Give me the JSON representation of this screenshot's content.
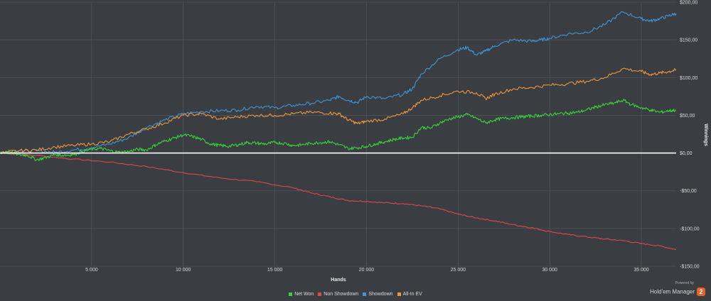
{
  "chart_data": {
    "type": "line",
    "xlabel": "Hands",
    "ylabel": "Winnings",
    "xlim": [
      0,
      36900
    ],
    "ylim": [
      -150,
      200
    ],
    "x_ticks": [
      5000,
      10000,
      15000,
      20000,
      25000,
      30000,
      35000
    ],
    "x_tick_labels": [
      "5 000",
      "10 000",
      "15 000",
      "20 000",
      "25 000",
      "30 000",
      "35 000"
    ],
    "y_ticks": [
      200,
      150,
      100,
      50,
      0,
      -50,
      -100,
      -150
    ],
    "y_tick_labels": [
      "$200,00",
      "$150,00",
      "$100,00",
      "$50,00",
      "$0,00",
      "-$50,00",
      "-$100,00",
      "-$150,00"
    ],
    "grid": true,
    "legend_position": "bottom-center",
    "zero_line_color": "#ffffff",
    "series": [
      {
        "name": "Net Won",
        "color": "#35d33a",
        "points": [
          [
            0,
            0
          ],
          [
            500,
            2
          ],
          [
            1000,
            -2
          ],
          [
            1500,
            -3
          ],
          [
            2000,
            -9
          ],
          [
            2500,
            -6
          ],
          [
            3000,
            -2
          ],
          [
            3500,
            -3
          ],
          [
            4000,
            -2
          ],
          [
            4500,
            2
          ],
          [
            5000,
            5
          ],
          [
            5500,
            6
          ],
          [
            6000,
            3
          ],
          [
            6500,
            1
          ],
          [
            7000,
            2
          ],
          [
            7500,
            5
          ],
          [
            8000,
            4
          ],
          [
            8500,
            11
          ],
          [
            9000,
            16
          ],
          [
            9500,
            20
          ],
          [
            10000,
            24
          ],
          [
            10500,
            22
          ],
          [
            11000,
            18
          ],
          [
            11500,
            12
          ],
          [
            12000,
            10
          ],
          [
            12500,
            9
          ],
          [
            13000,
            11
          ],
          [
            13500,
            14
          ],
          [
            14000,
            13
          ],
          [
            14500,
            12
          ],
          [
            15000,
            14
          ],
          [
            15500,
            13
          ],
          [
            16000,
            10
          ],
          [
            16500,
            11
          ],
          [
            17000,
            13
          ],
          [
            17500,
            14
          ],
          [
            18000,
            15
          ],
          [
            18500,
            11
          ],
          [
            19000,
            6
          ],
          [
            19500,
            7
          ],
          [
            20000,
            9
          ],
          [
            20500,
            12
          ],
          [
            21000,
            15
          ],
          [
            21500,
            18
          ],
          [
            22000,
            20
          ],
          [
            22500,
            21
          ],
          [
            23000,
            34
          ],
          [
            23500,
            33
          ],
          [
            24000,
            40
          ],
          [
            24500,
            45
          ],
          [
            25000,
            48
          ],
          [
            25500,
            51
          ],
          [
            26000,
            46
          ],
          [
            26500,
            40
          ],
          [
            27000,
            44
          ],
          [
            27500,
            46
          ],
          [
            28000,
            47
          ],
          [
            28500,
            48
          ],
          [
            29000,
            49
          ],
          [
            29500,
            50
          ],
          [
            30000,
            51
          ],
          [
            30500,
            52
          ],
          [
            31000,
            53
          ],
          [
            31500,
            54
          ],
          [
            32000,
            57
          ],
          [
            32500,
            61
          ],
          [
            33000,
            64
          ],
          [
            33500,
            66
          ],
          [
            34000,
            70
          ],
          [
            34500,
            64
          ],
          [
            35000,
            60
          ],
          [
            35500,
            57
          ],
          [
            36000,
            54
          ],
          [
            36500,
            56
          ],
          [
            36900,
            57
          ]
        ]
      },
      {
        "name": "Non Showdown",
        "color": "#e04848",
        "points": [
          [
            0,
            0
          ],
          [
            2000,
            -3
          ],
          [
            4000,
            -8
          ],
          [
            6000,
            -12
          ],
          [
            8000,
            -18
          ],
          [
            10000,
            -26
          ],
          [
            12000,
            -33
          ],
          [
            14000,
            -38
          ],
          [
            16000,
            -46
          ],
          [
            17000,
            -53
          ],
          [
            18000,
            -58
          ],
          [
            19000,
            -63
          ],
          [
            20000,
            -64
          ],
          [
            21000,
            -66
          ],
          [
            22000,
            -67
          ],
          [
            23000,
            -70
          ],
          [
            24000,
            -74
          ],
          [
            25000,
            -81
          ],
          [
            26000,
            -86
          ],
          [
            27000,
            -90
          ],
          [
            28000,
            -95
          ],
          [
            29000,
            -99
          ],
          [
            30000,
            -104
          ],
          [
            31000,
            -108
          ],
          [
            32000,
            -111
          ],
          [
            33000,
            -114
          ],
          [
            34000,
            -116
          ],
          [
            35000,
            -120
          ],
          [
            36000,
            -123
          ],
          [
            36900,
            -128
          ]
        ]
      },
      {
        "name": "Showdown",
        "color": "#3e97d8",
        "points": [
          [
            0,
            0
          ],
          [
            1000,
            2
          ],
          [
            2000,
            3
          ],
          [
            3000,
            1
          ],
          [
            4000,
            4
          ],
          [
            5000,
            7
          ],
          [
            6000,
            12
          ],
          [
            7000,
            20
          ],
          [
            8000,
            34
          ],
          [
            9000,
            44
          ],
          [
            10000,
            52
          ],
          [
            11000,
            55
          ],
          [
            12000,
            56
          ],
          [
            13000,
            57
          ],
          [
            14000,
            62
          ],
          [
            15000,
            60
          ],
          [
            16000,
            63
          ],
          [
            17000,
            66
          ],
          [
            18000,
            70
          ],
          [
            18500,
            75
          ],
          [
            19000,
            70
          ],
          [
            19500,
            67
          ],
          [
            20000,
            75
          ],
          [
            21000,
            72
          ],
          [
            22000,
            78
          ],
          [
            22500,
            85
          ],
          [
            23000,
            105
          ],
          [
            24000,
            125
          ],
          [
            25000,
            137
          ],
          [
            25500,
            140
          ],
          [
            26000,
            130
          ],
          [
            26500,
            135
          ],
          [
            27000,
            142
          ],
          [
            28000,
            150
          ],
          [
            29000,
            148
          ],
          [
            29500,
            150
          ],
          [
            30000,
            152
          ],
          [
            31000,
            158
          ],
          [
            32000,
            160
          ],
          [
            33000,
            170
          ],
          [
            34000,
            187
          ],
          [
            35000,
            178
          ],
          [
            35500,
            175
          ],
          [
            36000,
            178
          ],
          [
            36500,
            182
          ],
          [
            36900,
            185
          ]
        ]
      },
      {
        "name": "All-In EV",
        "color": "#f0963a",
        "points": [
          [
            0,
            0
          ],
          [
            1000,
            3
          ],
          [
            2000,
            4
          ],
          [
            3000,
            8
          ],
          [
            4000,
            10
          ],
          [
            5000,
            12
          ],
          [
            6000,
            15
          ],
          [
            7000,
            25
          ],
          [
            8000,
            32
          ],
          [
            9000,
            40
          ],
          [
            10000,
            50
          ],
          [
            11000,
            52
          ],
          [
            12000,
            45
          ],
          [
            13000,
            48
          ],
          [
            14000,
            50
          ],
          [
            15000,
            50
          ],
          [
            16000,
            52
          ],
          [
            17000,
            54
          ],
          [
            18000,
            53
          ],
          [
            18500,
            52
          ],
          [
            19000,
            44
          ],
          [
            19500,
            39
          ],
          [
            20000,
            42
          ],
          [
            21000,
            45
          ],
          [
            22000,
            52
          ],
          [
            22500,
            60
          ],
          [
            23000,
            70
          ],
          [
            24000,
            76
          ],
          [
            25000,
            82
          ],
          [
            26000,
            80
          ],
          [
            26500,
            72
          ],
          [
            27000,
            78
          ],
          [
            28000,
            85
          ],
          [
            29000,
            87
          ],
          [
            30000,
            90
          ],
          [
            31000,
            92
          ],
          [
            32000,
            95
          ],
          [
            33000,
            100
          ],
          [
            34000,
            112
          ],
          [
            35000,
            108
          ],
          [
            35500,
            104
          ],
          [
            36000,
            106
          ],
          [
            36500,
            108
          ],
          [
            36900,
            110
          ]
        ]
      }
    ]
  },
  "brand": {
    "powered_by": "Powered by",
    "name": "Hold'em Manager",
    "badge": "2"
  }
}
